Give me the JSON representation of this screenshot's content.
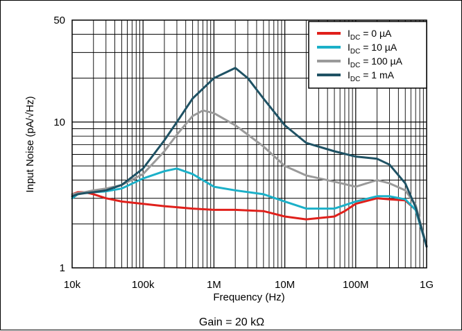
{
  "chart_data": {
    "type": "line",
    "xlabel": "Frequency (Hz)",
    "ylabel": "Input Noise (pA/√Hz)",
    "caption": "Gain = 20 kΩ",
    "x_scale": "log",
    "y_scale": "log",
    "xlim": [
      10000,
      1000000000
    ],
    "ylim": [
      1,
      50
    ],
    "grid": true,
    "legend_position": "top-right",
    "x_tick_labels": [
      "10k",
      "100k",
      "1M",
      "10M",
      "100M",
      "1G"
    ],
    "y_tick_labels": [
      "1",
      "10",
      "50"
    ],
    "x_ticks": [
      10000,
      100000,
      1000000,
      10000000,
      100000000,
      1000000000
    ],
    "y_ticks": [
      1,
      10,
      50
    ],
    "series": [
      {
        "name": "I_DC = 0 µA",
        "legend_main": "I",
        "legend_sub": "DC",
        "legend_rest": " = 0 µA",
        "color": "#e0201b",
        "x": [
          10000,
          12000,
          15000,
          20000,
          30000,
          50000,
          100000,
          200000,
          500000,
          1000000,
          2000000,
          5000000,
          10000000,
          20000000,
          50000000,
          70000000,
          100000000,
          200000000,
          300000000,
          500000000,
          700000000,
          1000000000
        ],
        "y": [
          3.2,
          3.3,
          3.3,
          3.2,
          3.0,
          2.85,
          2.75,
          2.65,
          2.55,
          2.5,
          2.5,
          2.45,
          2.25,
          2.15,
          2.25,
          2.45,
          2.75,
          3.0,
          2.95,
          2.9,
          2.5,
          1.4
        ]
      },
      {
        "name": "I_DC = 10 µA",
        "legend_main": "I",
        "legend_sub": "DC",
        "legend_rest": " = 10 µA",
        "color": "#1bb0c8",
        "x": [
          10000,
          12000,
          15000,
          20000,
          30000,
          50000,
          100000,
          200000,
          300000,
          500000,
          1000000,
          2000000,
          5000000,
          10000000,
          20000000,
          50000000,
          100000000,
          200000000,
          300000000,
          500000000,
          700000000,
          1000000000
        ],
        "y": [
          3.0,
          3.2,
          3.3,
          3.3,
          3.35,
          3.5,
          4.1,
          4.6,
          4.8,
          4.4,
          3.6,
          3.4,
          3.2,
          2.85,
          2.55,
          2.55,
          2.85,
          3.1,
          3.1,
          2.95,
          2.5,
          1.4
        ]
      },
      {
        "name": "I_DC = 100 µA",
        "legend_main": "I",
        "legend_sub": "DC",
        "legend_rest": " = 100 µA",
        "color": "#9a9a9a",
        "x": [
          10000,
          12000,
          15000,
          20000,
          30000,
          50000,
          100000,
          200000,
          300000,
          500000,
          700000,
          1000000,
          2000000,
          3000000,
          5000000,
          10000000,
          20000000,
          50000000,
          100000000,
          200000000,
          300000000,
          500000000,
          700000000,
          1000000000
        ],
        "y": [
          3.2,
          3.25,
          3.3,
          3.4,
          3.5,
          3.7,
          4.4,
          6.3,
          8.2,
          11.0,
          12.0,
          11.5,
          9.5,
          8.2,
          6.8,
          5.0,
          4.3,
          3.9,
          3.6,
          4.0,
          3.8,
          3.4,
          2.7,
          1.4
        ]
      },
      {
        "name": "I_DC = 1 mA",
        "legend_main": "I",
        "legend_sub": "DC",
        "legend_rest": " = 1 mA",
        "color": "#1f5264",
        "x": [
          10000,
          12000,
          15000,
          20000,
          30000,
          50000,
          100000,
          200000,
          300000,
          500000,
          1000000,
          2000000,
          3000000,
          5000000,
          10000000,
          20000000,
          50000000,
          100000000,
          200000000,
          300000000,
          500000000,
          700000000,
          1000000000
        ],
        "y": [
          3.1,
          3.2,
          3.25,
          3.3,
          3.4,
          3.7,
          4.8,
          7.5,
          10.0,
          14.5,
          20.0,
          23.5,
          20.0,
          14.5,
          9.5,
          7.2,
          6.3,
          5.8,
          5.6,
          5.1,
          3.8,
          2.6,
          1.4
        ]
      }
    ]
  }
}
